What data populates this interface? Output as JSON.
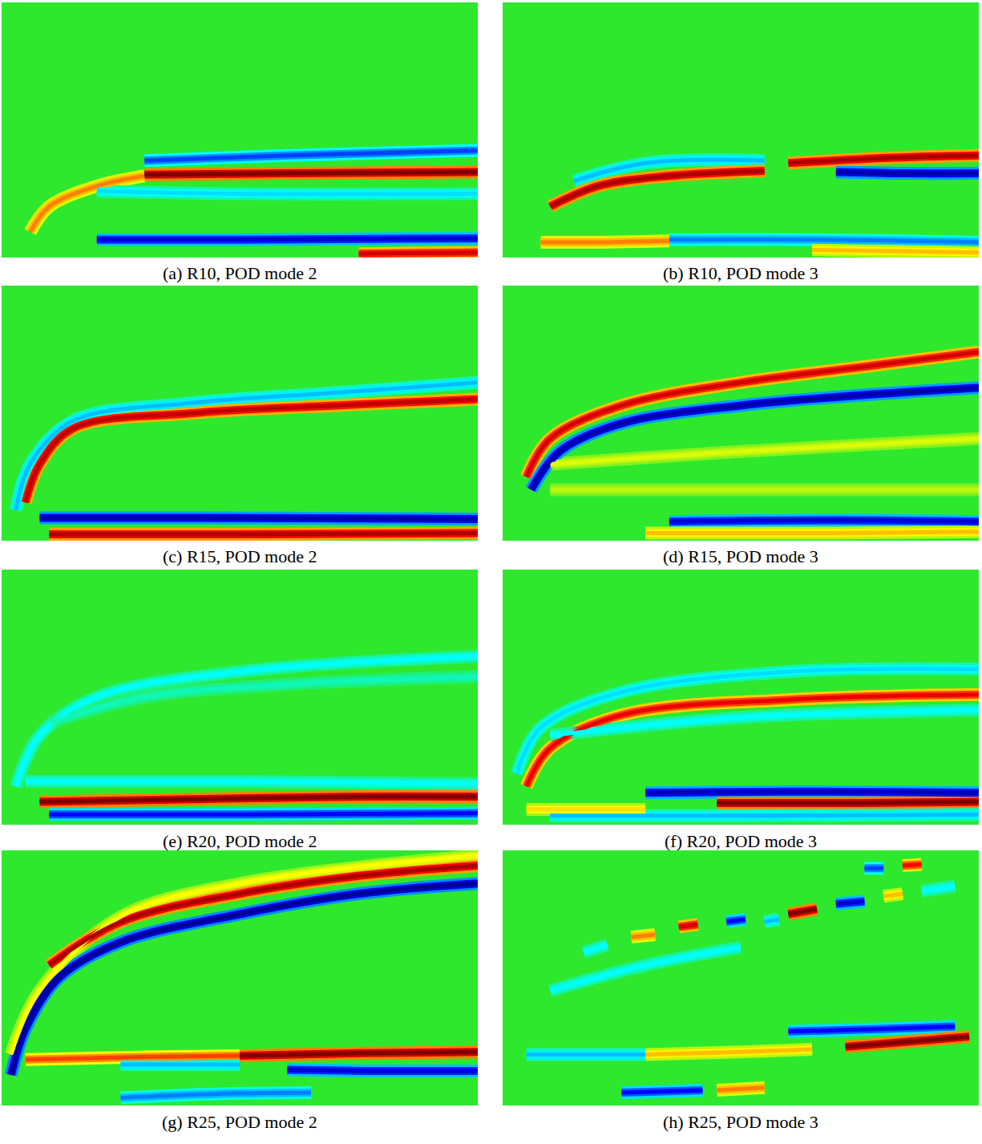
{
  "chart_data": [
    {
      "type": "field",
      "title": "(a) R10, POD mode 2",
      "xlim": [
        0,
        1
      ],
      "ylim": [
        0,
        1
      ],
      "tick_labels": false,
      "color": "jet",
      "color_range": [
        -1,
        1
      ],
      "background": 0,
      "bands": [
        {
          "value": -0.6,
          "x": [
            0.3,
            0.6,
            1.0
          ],
          "y": [
            0.38,
            0.4,
            0.42
          ]
        },
        {
          "value": 0.5,
          "x": [
            0.06,
            0.1,
            0.2,
            0.3
          ],
          "y": [
            0.1,
            0.2,
            0.28,
            0.32
          ]
        },
        {
          "value": 1,
          "x": [
            0.3,
            0.6,
            1.0
          ],
          "y": [
            0.325,
            0.33,
            0.335
          ]
        },
        {
          "value": -0.35,
          "x": [
            0.2,
            0.5,
            1.0
          ],
          "y": [
            0.26,
            0.25,
            0.25
          ]
        },
        {
          "value": -0.8,
          "x": [
            0.2,
            0.5,
            1.0
          ],
          "y": [
            0.07,
            0.07,
            0.075
          ]
        },
        {
          "value": 0.8,
          "x": [
            0.75,
            1.0
          ],
          "y": [
            0.015,
            0.02
          ]
        }
      ]
    },
    {
      "type": "field",
      "title": "(b) R10, POD mode 3",
      "xlim": [
        0,
        1
      ],
      "ylim": [
        0,
        1
      ],
      "tick_labels": false,
      "color": "jet",
      "color_range": [
        -1,
        1
      ],
      "background": 0,
      "bands": [
        {
          "value": -0.4,
          "x": [
            0.15,
            0.3,
            0.55
          ],
          "y": [
            0.3,
            0.37,
            0.38
          ]
        },
        {
          "value": 0.9,
          "x": [
            0.1,
            0.2,
            0.35,
            0.55
          ],
          "y": [
            0.2,
            0.28,
            0.32,
            0.34
          ]
        },
        {
          "value": 0.9,
          "x": [
            0.6,
            0.8,
            1.0
          ],
          "y": [
            0.37,
            0.39,
            0.4
          ]
        },
        {
          "value": -0.9,
          "x": [
            0.7,
            0.85,
            1.0
          ],
          "y": [
            0.335,
            0.33,
            0.33
          ]
        },
        {
          "value": -0.5,
          "x": [
            0.35,
            0.65,
            1.0
          ],
          "y": [
            0.07,
            0.07,
            0.06
          ]
        },
        {
          "value": 0.5,
          "x": [
            0.08,
            0.2,
            0.35
          ],
          "y": [
            0.06,
            0.06,
            0.065
          ]
        },
        {
          "value": 0.4,
          "x": [
            0.65,
            1.0
          ],
          "y": [
            0.03,
            0.02
          ]
        }
      ]
    },
    {
      "type": "field",
      "title": "(c) R15, POD mode 2",
      "xlim": [
        0,
        1
      ],
      "ylim": [
        0,
        1
      ],
      "tick_labels": false,
      "color": "jet",
      "color_range": [
        -1,
        1
      ],
      "background": 0,
      "bands": [
        {
          "value": -0.4,
          "x": [
            0.03,
            0.06,
            0.15,
            0.4,
            0.7,
            1.0
          ],
          "y": [
            0.12,
            0.3,
            0.47,
            0.54,
            0.58,
            0.62
          ]
        },
        {
          "value": 0.85,
          "x": [
            0.05,
            0.08,
            0.15,
            0.4,
            0.7,
            1.0
          ],
          "y": [
            0.15,
            0.3,
            0.44,
            0.5,
            0.53,
            0.555
          ]
        },
        {
          "value": -0.9,
          "x": [
            0.08,
            0.4,
            1.0
          ],
          "y": [
            0.09,
            0.09,
            0.085
          ]
        },
        {
          "value": 0.9,
          "x": [
            0.1,
            0.5,
            1.0
          ],
          "y": [
            0.025,
            0.025,
            0.03
          ]
        }
      ]
    },
    {
      "type": "field",
      "title": "(d) R15, POD mode 3",
      "xlim": [
        0,
        1
      ],
      "ylim": [
        0,
        1
      ],
      "tick_labels": false,
      "color": "jet",
      "color_range": [
        -1,
        1
      ],
      "background": 0,
      "bands": [
        {
          "value": 0.25,
          "x": [
            0.1,
            0.5,
            1.0
          ],
          "y": [
            0.3,
            0.35,
            0.4
          ]
        },
        {
          "value": 0.2,
          "x": [
            0.1,
            0.5,
            1.0
          ],
          "y": [
            0.2,
            0.2,
            0.2
          ]
        },
        {
          "value": 0.8,
          "x": [
            0.05,
            0.1,
            0.25,
            0.5,
            0.75,
            1.0
          ],
          "y": [
            0.25,
            0.4,
            0.53,
            0.62,
            0.68,
            0.74
          ]
        },
        {
          "value": -0.9,
          "x": [
            0.06,
            0.12,
            0.25,
            0.5,
            0.75,
            1.0
          ],
          "y": [
            0.2,
            0.35,
            0.46,
            0.53,
            0.57,
            0.6
          ]
        },
        {
          "value": -0.8,
          "x": [
            0.35,
            0.7,
            1.0
          ],
          "y": [
            0.075,
            0.08,
            0.075
          ]
        },
        {
          "value": 0.4,
          "x": [
            0.3,
            0.7,
            1.0
          ],
          "y": [
            0.03,
            0.03,
            0.035
          ]
        }
      ]
    },
    {
      "type": "field",
      "title": "(e) R20, POD mode 2",
      "xlim": [
        0,
        1
      ],
      "ylim": [
        0,
        1
      ],
      "tick_labels": false,
      "color": "jet",
      "color_range": [
        -1,
        1
      ],
      "background": 0,
      "bands": [
        {
          "value": -0.3,
          "x": [
            0.03,
            0.08,
            0.2,
            0.5,
            1.0
          ],
          "y": [
            0.15,
            0.35,
            0.5,
            0.6,
            0.66
          ]
        },
        {
          "value": -0.2,
          "x": [
            0.1,
            0.3,
            0.6,
            1.0
          ],
          "y": [
            0.4,
            0.5,
            0.55,
            0.58
          ]
        },
        {
          "value": -0.3,
          "x": [
            0.05,
            0.5,
            1.0
          ],
          "y": [
            0.17,
            0.17,
            0.16
          ]
        },
        {
          "value": 1,
          "x": [
            0.08,
            0.4,
            0.75,
            1.0
          ],
          "y": [
            0.09,
            0.1,
            0.11,
            0.11
          ]
        },
        {
          "value": -0.7,
          "x": [
            0.1,
            0.5,
            1.0
          ],
          "y": [
            0.04,
            0.04,
            0.045
          ]
        }
      ]
    },
    {
      "type": "field",
      "title": "(f) R20, POD mode 3",
      "xlim": [
        0,
        1
      ],
      "ylim": [
        0,
        1
      ],
      "tick_labels": false,
      "color": "jet",
      "color_range": [
        -1,
        1
      ],
      "background": 0,
      "bands": [
        {
          "value": -0.35,
          "x": [
            0.03,
            0.08,
            0.25,
            0.6,
            1.0
          ],
          "y": [
            0.2,
            0.38,
            0.52,
            0.6,
            0.61
          ]
        },
        {
          "value": 0.75,
          "x": [
            0.05,
            0.1,
            0.25,
            0.6,
            1.0
          ],
          "y": [
            0.15,
            0.3,
            0.43,
            0.49,
            0.51
          ]
        },
        {
          "value": -0.3,
          "x": [
            0.1,
            0.5,
            1.0
          ],
          "y": [
            0.35,
            0.42,
            0.45
          ]
        },
        {
          "value": -0.85,
          "x": [
            0.3,
            0.6,
            1.0
          ],
          "y": [
            0.125,
            0.13,
            0.125
          ]
        },
        {
          "value": 1,
          "x": [
            0.45,
            0.75,
            1.0
          ],
          "y": [
            0.085,
            0.085,
            0.09
          ]
        },
        {
          "value": -0.4,
          "x": [
            0.1,
            0.5,
            1.0
          ],
          "y": [
            0.035,
            0.035,
            0.04
          ]
        },
        {
          "value": 0.35,
          "x": [
            0.05,
            0.3
          ],
          "y": [
            0.06,
            0.06
          ]
        }
      ]
    },
    {
      "type": "field",
      "title": "(g) R25, POD mode 2",
      "xlim": [
        0,
        1
      ],
      "ylim": [
        0,
        1
      ],
      "tick_labels": false,
      "color": "jet",
      "color_range": [
        -1,
        1
      ],
      "background": 0,
      "bands": [
        {
          "value": 0.3,
          "x": [
            0.02,
            0.08,
            0.25,
            0.5,
            1.0
          ],
          "y": [
            0.2,
            0.45,
            0.74,
            0.87,
            0.98
          ]
        },
        {
          "value": 0.9,
          "x": [
            0.1,
            0.25,
            0.5,
            0.75,
            1.0
          ],
          "y": [
            0.55,
            0.72,
            0.83,
            0.9,
            0.94
          ]
        },
        {
          "value": -0.95,
          "x": [
            0.02,
            0.05,
            0.12,
            0.25,
            0.5,
            0.75,
            1.0
          ],
          "y": [
            0.12,
            0.3,
            0.5,
            0.64,
            0.75,
            0.83,
            0.87
          ]
        },
        {
          "value": 0.6,
          "x": [
            0.05,
            0.3,
            0.5
          ],
          "y": [
            0.18,
            0.19,
            0.195
          ]
        },
        {
          "value": 1,
          "x": [
            0.5,
            0.75,
            1.0
          ],
          "y": [
            0.195,
            0.205,
            0.21
          ]
        },
        {
          "value": -0.8,
          "x": [
            0.6,
            0.8,
            1.0
          ],
          "y": [
            0.14,
            0.135,
            0.135
          ]
        },
        {
          "value": -0.4,
          "x": [
            0.25,
            0.5
          ],
          "y": [
            0.16,
            0.16
          ]
        },
        {
          "value": -0.5,
          "x": [
            0.25,
            0.45,
            0.65
          ],
          "y": [
            0.03,
            0.045,
            0.05
          ]
        }
      ]
    },
    {
      "type": "field",
      "title": "(h) R25, POD mode 3",
      "xlim": [
        0,
        1
      ],
      "ylim": [
        0,
        1
      ],
      "tick_labels": false,
      "color": "jet",
      "color_range": [
        -1,
        1
      ],
      "background": 0,
      "bands": [
        {
          "value": -0.3,
          "x": [
            0.1,
            0.3,
            0.5
          ],
          "y": [
            0.45,
            0.55,
            0.62
          ]
        },
        {
          "value": -0.3,
          "x": [
            0.17,
            0.22
          ],
          "y": [
            0.6,
            0.63
          ]
        },
        {
          "value": 0.5,
          "x": [
            0.27,
            0.32
          ],
          "y": [
            0.66,
            0.67
          ]
        },
        {
          "value": 0.8,
          "x": [
            0.37,
            0.41
          ],
          "y": [
            0.7,
            0.71
          ]
        },
        {
          "value": -0.7,
          "x": [
            0.47,
            0.51
          ],
          "y": [
            0.72,
            0.73
          ]
        },
        {
          "value": -0.4,
          "x": [
            0.55,
            0.58
          ],
          "y": [
            0.72,
            0.73
          ]
        },
        {
          "value": 1,
          "x": [
            0.6,
            0.66
          ],
          "y": [
            0.75,
            0.77
          ]
        },
        {
          "value": -0.8,
          "x": [
            0.7,
            0.76
          ],
          "y": [
            0.79,
            0.8
          ]
        },
        {
          "value": 0.4,
          "x": [
            0.8,
            0.84
          ],
          "y": [
            0.82,
            0.83
          ]
        },
        {
          "value": -0.6,
          "x": [
            0.76,
            0.8
          ],
          "y": [
            0.93,
            0.93
          ]
        },
        {
          "value": 0.7,
          "x": [
            0.84,
            0.88
          ],
          "y": [
            0.94,
            0.945
          ]
        },
        {
          "value": -0.3,
          "x": [
            0.88,
            0.95
          ],
          "y": [
            0.84,
            0.86
          ]
        },
        {
          "value": -0.7,
          "x": [
            0.6,
            0.8,
            0.95
          ],
          "y": [
            0.29,
            0.3,
            0.31
          ]
        },
        {
          "value": 1,
          "x": [
            0.72,
            0.85,
            0.98
          ],
          "y": [
            0.23,
            0.25,
            0.27
          ]
        },
        {
          "value": 0.4,
          "x": [
            0.3,
            0.5,
            0.65
          ],
          "y": [
            0.2,
            0.21,
            0.22
          ]
        },
        {
          "value": -0.4,
          "x": [
            0.05,
            0.3
          ],
          "y": [
            0.2,
            0.2
          ]
        },
        {
          "value": -0.7,
          "x": [
            0.25,
            0.42
          ],
          "y": [
            0.05,
            0.06
          ]
        },
        {
          "value": 0.5,
          "x": [
            0.45,
            0.55
          ],
          "y": [
            0.06,
            0.07
          ]
        }
      ]
    }
  ]
}
